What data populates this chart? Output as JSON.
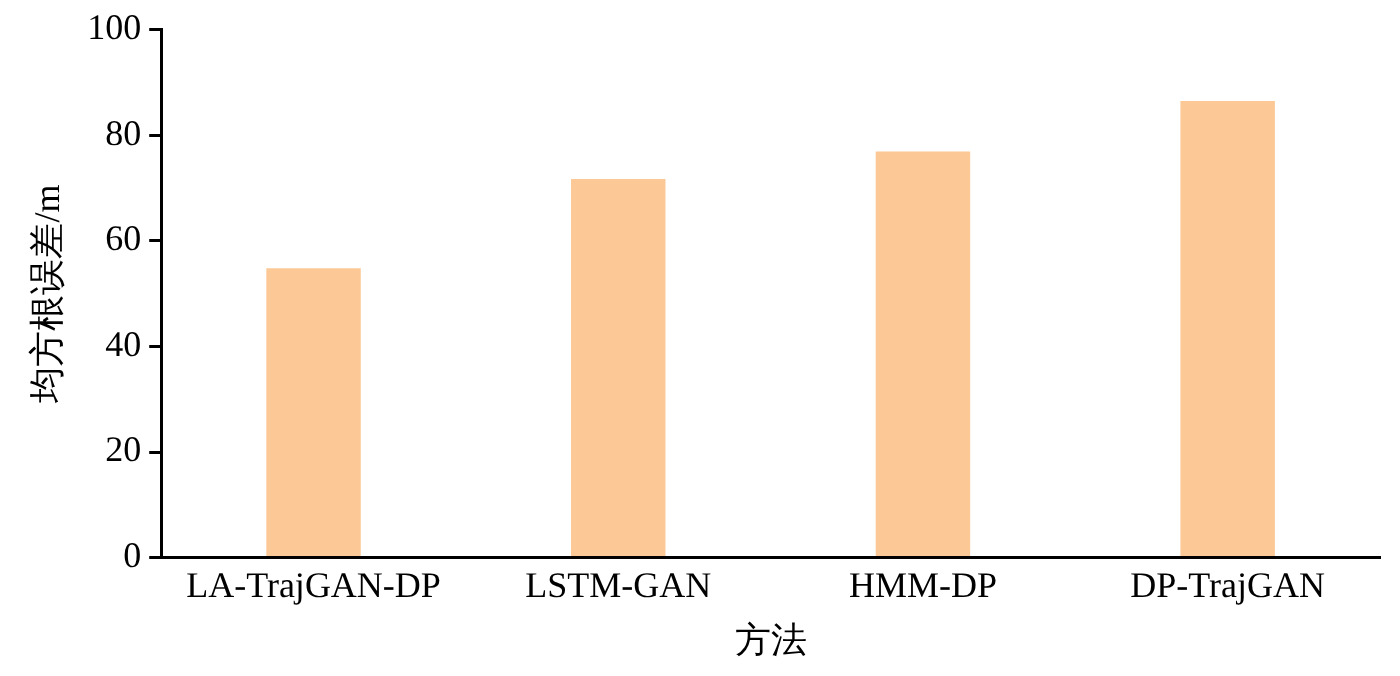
{
  "chart_data": {
    "type": "bar",
    "xlabel": "方法",
    "ylabel": "均方根误差/m",
    "categories": [
      "LA-TrajGAN-DP",
      "LSTM-GAN",
      "HMM-DP",
      "DP-TrajGAN"
    ],
    "values": [
      54.8,
      71.7,
      76.9,
      86.5
    ],
    "color": "#fbc896",
    "ylim": [
      0,
      100
    ],
    "yticks": [
      0,
      20,
      40,
      60,
      80,
      100
    ],
    "grid": false,
    "legend": false
  }
}
